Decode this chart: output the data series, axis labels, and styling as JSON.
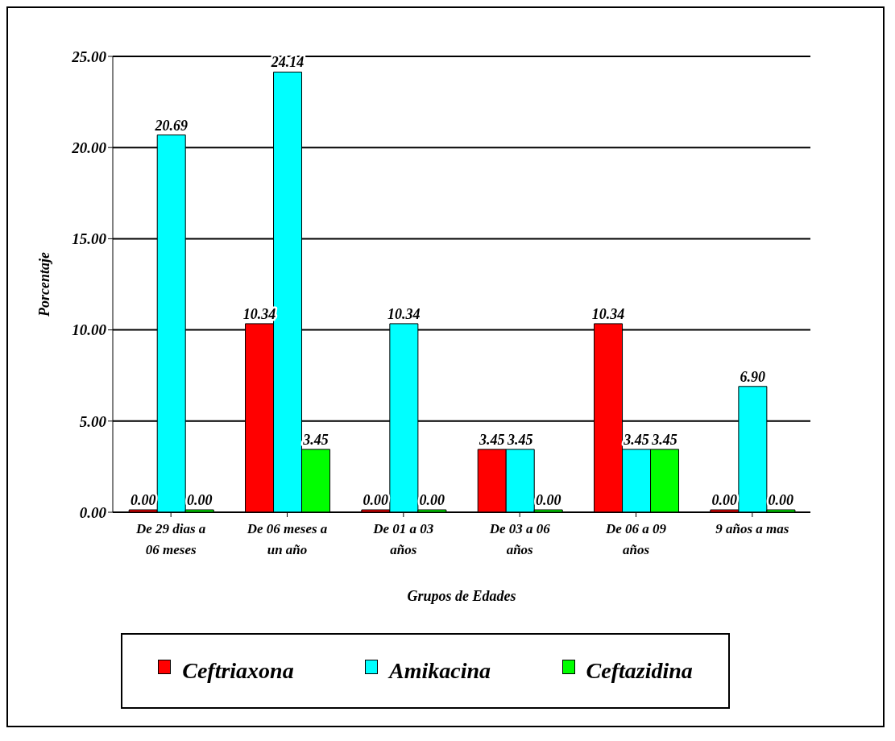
{
  "chart_data": {
    "type": "bar",
    "xlabel": "Grupos de Edades",
    "ylabel": "Porcentaje",
    "categories": [
      "De 29 dias a 06 meses",
      "De 06 meses a un año",
      "De 01 a 03 años",
      "De 03 a 06 años",
      "De 06 a 09 años",
      "9 años a mas"
    ],
    "series": [
      {
        "name": "Ceftriaxona",
        "color": "#ff0000",
        "values": [
          0,
          10.34,
          0,
          3.45,
          10.34,
          0
        ],
        "value_labels": [
          "0.00",
          "10.34",
          "0.00",
          "3.45",
          "10.34",
          "0.00"
        ]
      },
      {
        "name": "Amikacina",
        "color": "#00ffff",
        "values": [
          20.69,
          24.14,
          10.34,
          3.45,
          3.45,
          6.9
        ],
        "value_labels": [
          "20.69",
          "24.14",
          "10.34",
          "3.45",
          "3.45",
          "6.90"
        ]
      },
      {
        "name": "Ceftazidina",
        "color": "#00ff00",
        "values": [
          0,
          3.45,
          0,
          0,
          3.45,
          0
        ],
        "value_labels": [
          "0.00",
          "3.45",
          "0.00",
          "0.00",
          "3.45",
          "0.00"
        ]
      }
    ],
    "ylim": [
      0,
      25
    ],
    "yticks": [
      {
        "value": 0,
        "label": "0.00"
      },
      {
        "value": 5,
        "label": "5.00"
      },
      {
        "value": 10,
        "label": "10.00"
      },
      {
        "value": 15,
        "label": "15.00"
      },
      {
        "value": 20,
        "label": "20.00"
      },
      {
        "value": 25,
        "label": "25.00"
      }
    ],
    "grid": "y",
    "legend": "bottom"
  }
}
